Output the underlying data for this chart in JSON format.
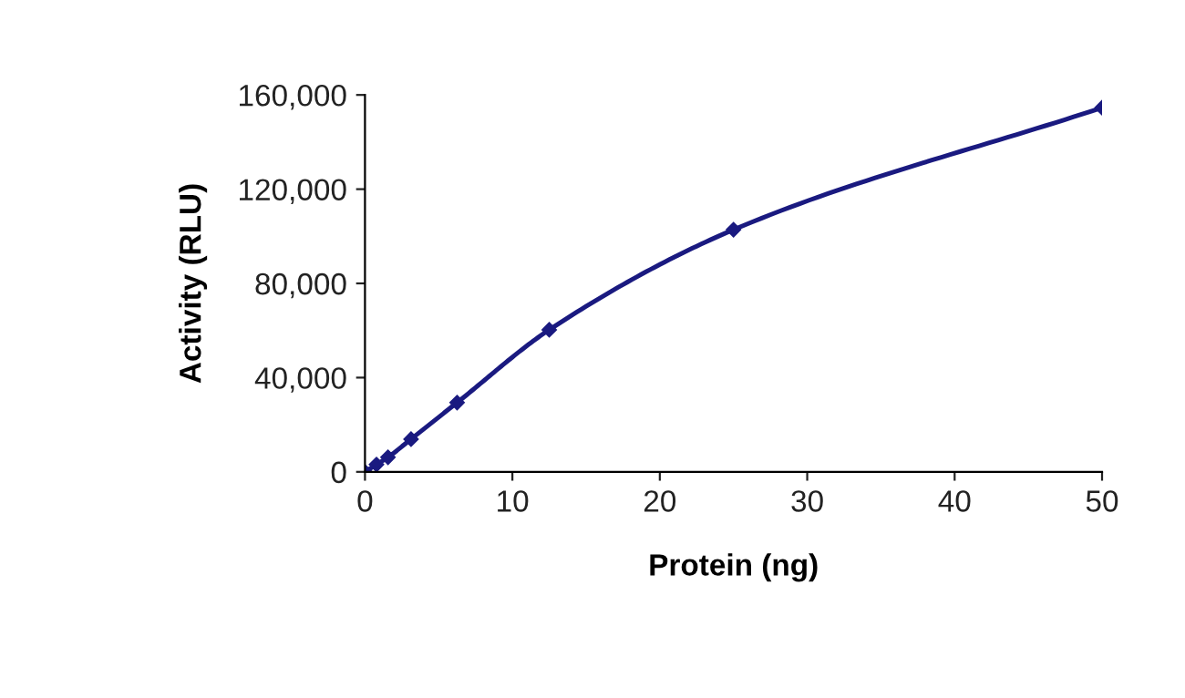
{
  "chart_data": {
    "type": "line",
    "xlabel": "Protein (ng)",
    "ylabel": "Activity (RLU)",
    "x": [
      0,
      0.78,
      1.56,
      3.125,
      6.25,
      12.5,
      25,
      50
    ],
    "series": [
      {
        "color": "#1a1a80",
        "values": [
          0,
          3100,
          6200,
          13900,
          29400,
          60300,
          102800,
          154600
        ]
      }
    ],
    "xlim": [
      0,
      50
    ],
    "xticks": [
      0,
      10,
      20,
      30,
      40,
      50
    ],
    "ylim": [
      0,
      160000
    ],
    "yticks": [
      {
        "value": 0,
        "label": "0"
      },
      {
        "value": 40000,
        "label": "40,000"
      },
      {
        "value": 80000,
        "label": "80,000"
      },
      {
        "value": 120000,
        "label": "120,000"
      },
      {
        "value": 160000,
        "label": "160,000"
      }
    ],
    "grid": false,
    "legend": false,
    "marker": "diamond",
    "line_style": "solid"
  }
}
